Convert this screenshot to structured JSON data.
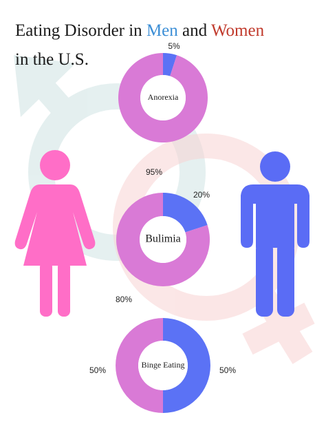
{
  "header": {
    "title_parts": [
      "Eating Disorder in",
      "Men",
      "and",
      "Women"
    ],
    "title_line2": "in the U.S.",
    "title_colors": [
      "#1a1a1a",
      "#3d8fd6",
      "#1a1a1a",
      "#c0392b"
    ]
  },
  "chart_data": [
    {
      "type": "pie",
      "center_label": "Anorexia",
      "values": [
        5,
        95
      ],
      "value_labels": [
        "5%",
        "95%"
      ],
      "colors": [
        "#5b72f5",
        "#d97ad6"
      ]
    },
    {
      "type": "pie",
      "center_label": "Bulimia",
      "values": [
        20,
        80
      ],
      "value_labels": [
        "20%",
        "80%"
      ],
      "colors": [
        "#5b72f5",
        "#d97ad6"
      ]
    },
    {
      "type": "pie",
      "center_label": "Binge Eating",
      "values": [
        50,
        50
      ],
      "value_labels": [
        "50%",
        "50%"
      ],
      "colors": [
        "#5b72f5",
        "#d97ad6"
      ]
    }
  ]
}
